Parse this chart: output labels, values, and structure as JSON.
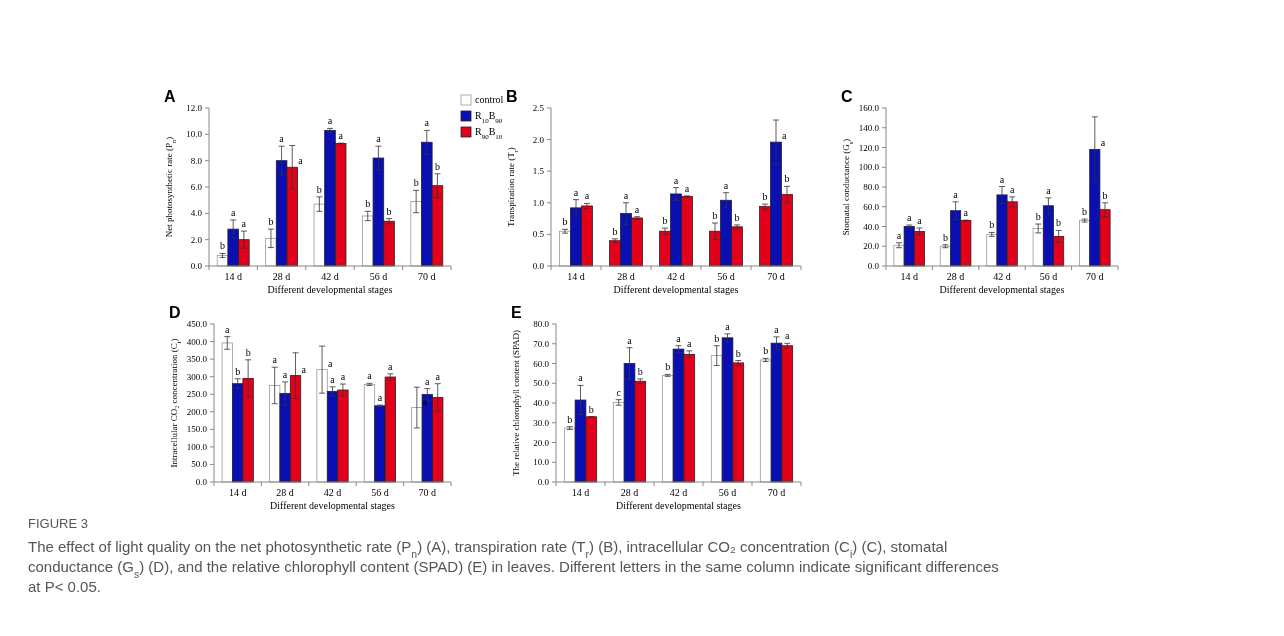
{
  "chart_data": [
    {
      "type": "bar",
      "title": "A",
      "xlabel": "Different developmental stages",
      "ylabel": "Net photosynthetic rate (P$_{n}$)",
      "categories": [
        "14 d",
        "28 d",
        "42 d",
        "56 d",
        "70 d"
      ],
      "legend": "right",
      "series": [
        {
          "name": "control",
          "color": "#ffffff",
          "values": [
            0.8,
            2.1,
            4.7,
            3.8,
            4.9
          ],
          "errors": [
            0.15,
            0.7,
            0.55,
            0.35,
            0.85
          ],
          "value_labels": [
            "b",
            "b",
            "b",
            "b",
            "b"
          ]
        },
        {
          "name": "R$_{10}$B$_{90}$",
          "color": "#0a0fb4",
          "values": [
            2.8,
            8.0,
            10.3,
            8.2,
            9.4
          ],
          "errors": [
            0.7,
            1.1,
            0.15,
            0.9,
            0.9
          ],
          "value_labels": [
            "a",
            "a",
            "a",
            "a",
            "a"
          ]
        },
        {
          "name": "R$_{90}$B$_{10}$",
          "color": "#e3001b",
          "values": [
            2.0,
            7.5,
            9.3,
            3.4,
            6.1
          ],
          "errors": [
            0.65,
            1.65,
            0.03,
            0.2,
            0.9
          ],
          "value_labels": [
            "a",
            "a",
            "a",
            "b",
            "b"
          ]
        }
      ],
      "ylim": [
        0,
        12
      ],
      "yticks": [
        {
          "value": 0,
          "label": "0.0"
        },
        {
          "value": 2,
          "label": "2.0"
        },
        {
          "value": 4,
          "label": "4.0"
        },
        {
          "value": 6,
          "label": "6.0"
        },
        {
          "value": 8,
          "label": "8.0"
        },
        {
          "value": 10,
          "label": "10.0"
        },
        {
          "value": 12,
          "label": "12.0"
        }
      ]
    },
    {
      "type": "bar",
      "title": "B",
      "xlabel": "Different developmental stages",
      "ylabel": "Transpiration rate (T$_{r}$)",
      "categories": [
        "14 d",
        "28 d",
        "42 d",
        "56 d",
        "70 d"
      ],
      "series": [
        {
          "colors": [
            "#ffffff",
            "#e3001b",
            "#e3001b",
            "#e3001b",
            "#e3001b"
          ],
          "values": [
            0.55,
            0.4,
            0.55,
            0.55,
            0.94
          ],
          "errors": [
            0.03,
            0.03,
            0.05,
            0.13,
            0.04
          ],
          "value_labels": [
            "b",
            "b",
            "b",
            "b",
            "b"
          ]
        },
        {
          "color": "#0a0fb4",
          "values": [
            0.92,
            0.83,
            1.14,
            1.04,
            1.96
          ],
          "errors": [
            0.13,
            0.17,
            0.1,
            0.12,
            0.35
          ],
          "value_labels": [
            "a",
            "a",
            "a",
            "a",
            "a"
          ]
        },
        {
          "color": "#e3001b",
          "values": [
            0.95,
            0.76,
            1.1,
            0.62,
            1.13
          ],
          "errors": [
            0.04,
            0.02,
            0.01,
            0.03,
            0.13
          ],
          "value_labels": [
            "a",
            "a",
            "a",
            "b",
            "b"
          ]
        }
      ],
      "ylim": [
        0,
        2.5
      ],
      "yticks": [
        {
          "value": 0,
          "label": "0.0"
        },
        {
          "value": 0.5,
          "label": "0.5"
        },
        {
          "value": 1,
          "label": "1.0"
        },
        {
          "value": 1.5,
          "label": "1.5"
        },
        {
          "value": 2,
          "label": "2.0"
        },
        {
          "value": 2.5,
          "label": "2.5"
        }
      ]
    },
    {
      "type": "bar",
      "title": "C",
      "xlabel": "Different developmental stages",
      "ylabel": "Stomatal conductance (G$_{s}$)",
      "categories": [
        "14 d",
        "28 d",
        "42 d",
        "56 d",
        "70 d"
      ],
      "series": [
        {
          "color": "#ffffff",
          "values": [
            21,
            20,
            32,
            38,
            46
          ],
          "errors": [
            2.5,
            1.5,
            2,
            4.5,
            1.5
          ],
          "value_labels": [
            "a",
            "b",
            "b",
            "b",
            "b"
          ]
        },
        {
          "color": "#0a0fb4",
          "values": [
            40,
            56,
            72,
            61,
            118
          ],
          "errors": [
            1.5,
            9,
            8.5,
            8,
            33
          ],
          "value_labels": [
            "a",
            "a",
            "a",
            "a",
            "a"
          ]
        },
        {
          "color": "#e3001b",
          "values": [
            35,
            46,
            65,
            30,
            57
          ],
          "errors": [
            3.5,
            0.5,
            5,
            6,
            7
          ],
          "value_labels": [
            "a",
            "a",
            "a",
            "b",
            "b"
          ]
        }
      ],
      "ylim": [
        0,
        160
      ],
      "yticks": [
        {
          "value": 0,
          "label": "0.0"
        },
        {
          "value": 20,
          "label": "20.0"
        },
        {
          "value": 40,
          "label": "40.0"
        },
        {
          "value": 60,
          "label": "60.0"
        },
        {
          "value": 80,
          "label": "80.0"
        },
        {
          "value": 100,
          "label": "100.0"
        },
        {
          "value": 120,
          "label": "120.0"
        },
        {
          "value": 140,
          "label": "140.0"
        },
        {
          "value": 160,
          "label": "160.0"
        }
      ]
    },
    {
      "type": "bar",
      "title": "D",
      "xlabel": "Different developmental stages",
      "ylabel": "Intracellular CO₂ concentration (C$_{i}$)",
      "categories": [
        "14 d",
        "28 d",
        "42 d",
        "56 d",
        "70 d"
      ],
      "series": [
        {
          "color": "#ffffff",
          "values": [
            396,
            275,
            320,
            278,
            212
          ],
          "errors": [
            18,
            52,
            67,
            3,
            58
          ],
          "value_labels": [
            "a",
            "a",
            "a",
            "a",
            "a"
          ]
        },
        {
          "color": "#0a0fb4",
          "values": [
            280,
            252,
            258,
            217,
            249
          ],
          "errors": [
            14,
            33,
            13,
            2,
            17
          ],
          "value_labels": [
            "b",
            "a",
            "a",
            "a",
            "a"
          ]
        },
        {
          "color": "#e3001b",
          "values": [
            295,
            303,
            262,
            299,
            241
          ],
          "errors": [
            53,
            65,
            17,
            9,
            39
          ],
          "value_labels": [
            "b",
            "a",
            "a",
            "a",
            "a"
          ]
        }
      ],
      "ylim": [
        0,
        450
      ],
      "yticks": [
        {
          "value": 0,
          "label": "0.0"
        },
        {
          "value": 50,
          "label": "50.0"
        },
        {
          "value": 100,
          "label": "100.0"
        },
        {
          "value": 150,
          "label": "150.0"
        },
        {
          "value": 200,
          "label": "200.0"
        },
        {
          "value": 250,
          "label": "250.0"
        },
        {
          "value": 300,
          "label": "300.0"
        },
        {
          "value": 350,
          "label": "350.0"
        },
        {
          "value": 400,
          "label": "400.0"
        },
        {
          "value": 450,
          "label": "450.0"
        }
      ]
    },
    {
      "type": "bar",
      "title": "E",
      "xlabel": "Different developmental stages",
      "ylabel": "The relative chlorophyll content (SPAD)",
      "categories": [
        "14 d",
        "28 d",
        "42 d",
        "56 d",
        "70 d"
      ],
      "series": [
        {
          "color": "#ffffff",
          "values": [
            27.3,
            40.3,
            54,
            64,
            61.8
          ],
          "errors": [
            0.7,
            1.4,
            0.5,
            5,
            0.8
          ],
          "value_labels": [
            "b",
            "c",
            "b",
            "b",
            "b"
          ]
        },
        {
          "color": "#0a0fb4",
          "values": [
            41.5,
            60,
            67.3,
            73,
            70.3
          ],
          "errors": [
            7.4,
            8,
            1.7,
            2,
            3.2
          ],
          "value_labels": [
            "a",
            "a",
            "a",
            "a",
            "a"
          ]
        },
        {
          "color": "#e3001b",
          "values": [
            33,
            51,
            64.6,
            60.3,
            69
          ],
          "errors": [
            0.1,
            1.2,
            1.8,
            1.2,
            1.2
          ],
          "value_labels": [
            "b",
            "b",
            "a",
            "b",
            "a"
          ]
        }
      ],
      "ylim": [
        0,
        80
      ],
      "yticks": [
        {
          "value": 0,
          "label": "0.0"
        },
        {
          "value": 10,
          "label": "10.0"
        },
        {
          "value": 20,
          "label": "20.0"
        },
        {
          "value": 30,
          "label": "30.0"
        },
        {
          "value": 40,
          "label": "40.0"
        },
        {
          "value": 50,
          "label": "50.0"
        },
        {
          "value": 60,
          "label": "60.0"
        },
        {
          "value": 70,
          "label": "70.0"
        },
        {
          "value": 80,
          "label": "80.0"
        }
      ]
    },
    {
      "type": "other",
      "title": "FIGURE 3",
      "annotations": [
        "The effect of light quality on the net photosynthetic rate (P$_{n}$) (A), transpiration rate (T$_{r}$) (B), intracellular CO₂ concentration (C$_{i}$) (C), stomatal conductance (G$_{s}$) (D), and the relative chlorophyll content (SPAD) (E) in leaves. Different letters in the same column indicate significant differences at P< 0.05."
      ]
    }
  ]
}
